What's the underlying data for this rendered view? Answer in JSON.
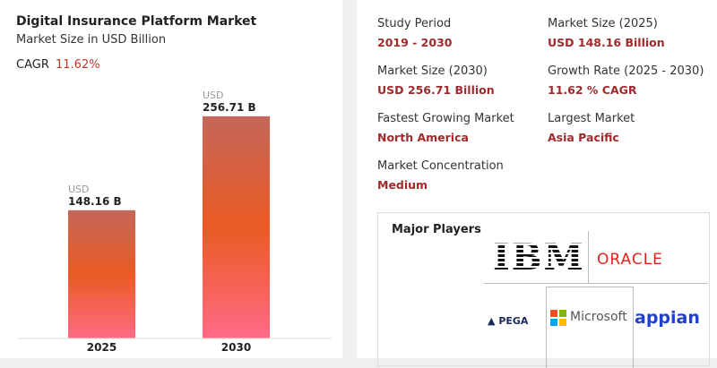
{
  "chart_data": {
    "type": "bar",
    "title": "Digital Insurance Platform Market",
    "subtitle": "Market Size in USD Billion",
    "cagr_label": "CAGR",
    "cagr_value": "11.62%",
    "unit": "USD",
    "categories": [
      "2025",
      "2030"
    ],
    "values": [
      148.16,
      256.71
    ],
    "value_labels": [
      "148.16 B",
      "256.71 B"
    ],
    "gradient": [
      "#c4675a",
      "#ea5a23",
      "#ff6b86"
    ],
    "ylim": [
      0,
      300
    ]
  },
  "info": [
    {
      "label": "Study Period",
      "value": "2019 - 2030"
    },
    {
      "label": "Market Size (2025)",
      "value": "USD 148.16 Billion"
    },
    {
      "label": "Market Size (2030)",
      "value": "USD 256.71 Billion"
    },
    {
      "label": "Growth Rate (2025 - 2030)",
      "value": "11.62 % CAGR"
    },
    {
      "label": "Fastest Growing Market",
      "value": "North America"
    },
    {
      "label": "Largest Market",
      "value": "Asia Pacific"
    },
    {
      "label": "Market Concentration",
      "value": "Medium"
    }
  ],
  "major_players": {
    "title": "Major Players",
    "companies": [
      "IBM",
      "ORACLE",
      "PEGA",
      "Microsoft",
      "appian"
    ]
  }
}
